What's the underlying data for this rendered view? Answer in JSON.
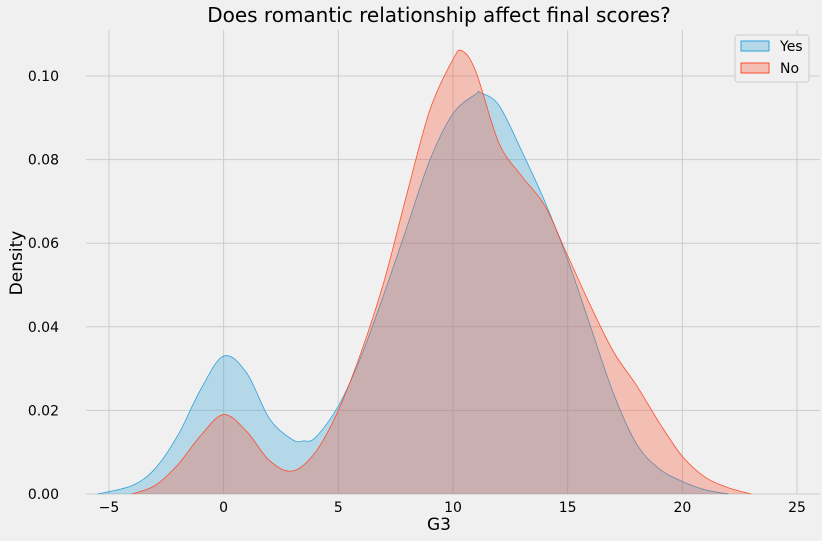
{
  "chart_data": {
    "type": "area",
    "title": "Does romantic relationship affect final scores?",
    "xlabel": "G3",
    "ylabel": "Density",
    "xlim": [
      -6,
      26
    ],
    "ylim": [
      0,
      0.111
    ],
    "xticks": [
      -5,
      0,
      5,
      10,
      15,
      20,
      25
    ],
    "yticks": [
      0.0,
      0.02,
      0.04,
      0.06,
      0.08,
      0.1
    ],
    "ytick_labels": [
      "0.00",
      "0.02",
      "0.04",
      "0.06",
      "0.08",
      "0.10"
    ],
    "xtick_labels": [
      "−5",
      "0",
      "5",
      "10",
      "15",
      "20",
      "25"
    ],
    "grid": true,
    "legend_position": "top-right",
    "series": [
      {
        "name": "Yes",
        "color": "#30a2da",
        "fill_opacity": 0.3,
        "x": [
          -5.5,
          -4,
          -3,
          -2,
          -1,
          0,
          1,
          2,
          3,
          3.5,
          4,
          5,
          6,
          7,
          8,
          9,
          10,
          11,
          11.2,
          12,
          13,
          14,
          15,
          16,
          17,
          18,
          19,
          20,
          21,
          22
        ],
        "y": [
          0.0,
          0.002,
          0.006,
          0.014,
          0.025,
          0.033,
          0.029,
          0.018,
          0.013,
          0.0127,
          0.0135,
          0.021,
          0.033,
          0.048,
          0.064,
          0.08,
          0.091,
          0.0957,
          0.096,
          0.093,
          0.082,
          0.07,
          0.056,
          0.04,
          0.024,
          0.012,
          0.006,
          0.003,
          0.001,
          0.0
        ]
      },
      {
        "name": "No",
        "color": "#fc4f30",
        "fill_opacity": 0.3,
        "x": [
          -4,
          -3,
          -2,
          -1,
          0,
          1,
          2,
          3,
          4,
          5,
          6,
          7,
          8,
          9,
          10,
          10.4,
          11,
          12,
          13,
          14,
          15,
          16,
          17,
          18,
          19,
          20,
          21,
          22,
          23
        ],
        "y": [
          0.0,
          0.002,
          0.007,
          0.014,
          0.019,
          0.015,
          0.008,
          0.0055,
          0.01,
          0.02,
          0.034,
          0.051,
          0.072,
          0.092,
          0.104,
          0.106,
          0.101,
          0.084,
          0.076,
          0.069,
          0.057,
          0.045,
          0.034,
          0.026,
          0.017,
          0.009,
          0.004,
          0.0015,
          0.0
        ]
      }
    ]
  }
}
